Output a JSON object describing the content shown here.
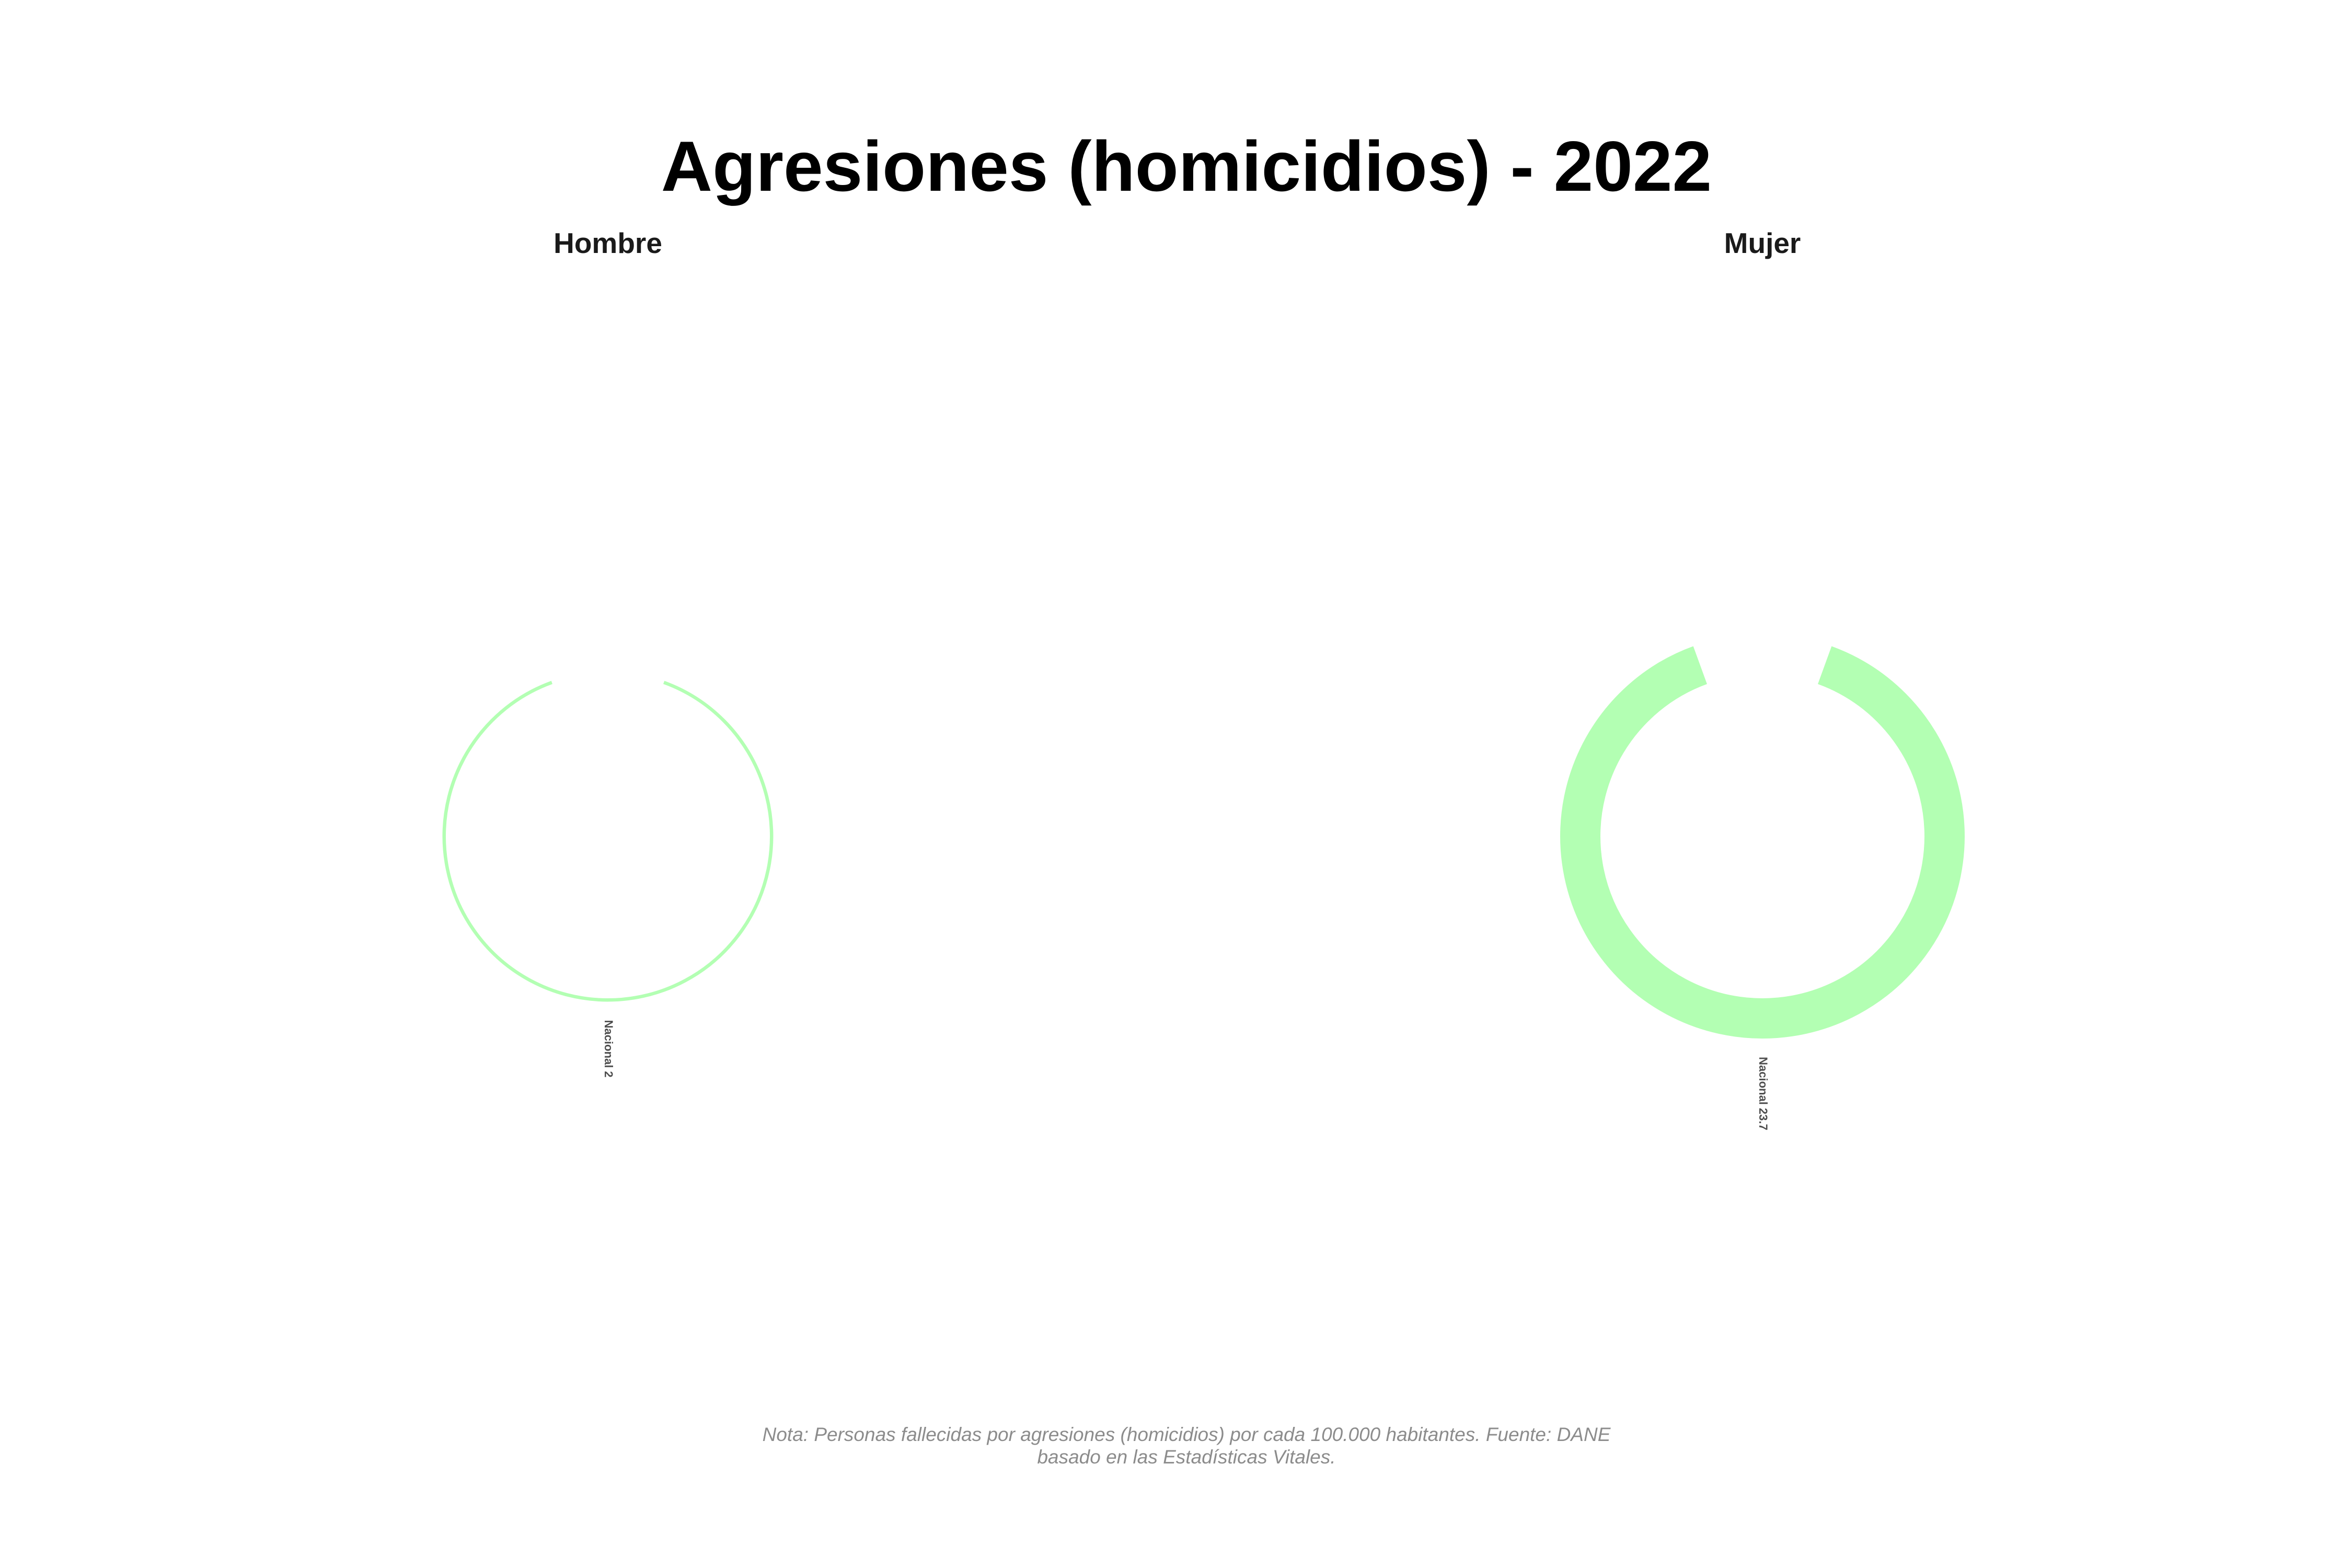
{
  "chart_data": {
    "type": "pie",
    "title": "Agresiones (homicidios) - 2022",
    "caption_lines": [
      "Nota: Personas fallecidas por agresiones (homicidios) por cada 100.000 habitantes. Fuente: DANE",
      "basado en las Estadísticas Vitales."
    ],
    "color": "#b3ffb3",
    "panels": [
      {
        "panel": "Hombre",
        "category": "Nacional",
        "value": 2,
        "label": "Nacional 2"
      },
      {
        "panel": "Mujer",
        "category": "Nacional",
        "value": 23.7,
        "label": "Nacional 23.7"
      }
    ]
  }
}
